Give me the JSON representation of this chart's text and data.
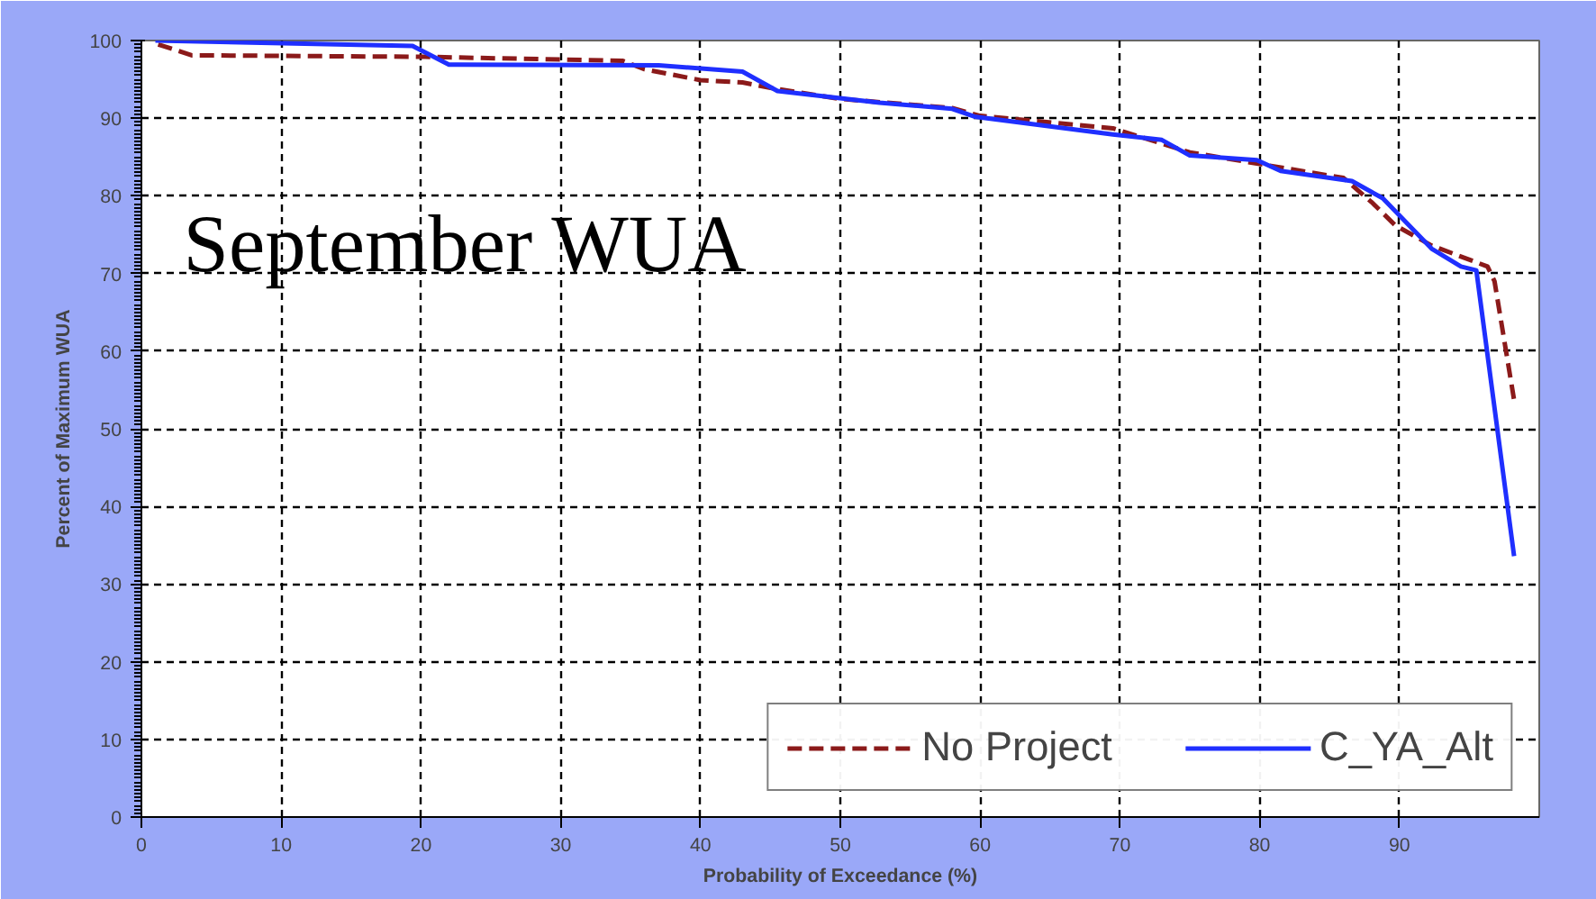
{
  "chart_data": {
    "type": "line",
    "title": "September WUA",
    "xlabel": "Probability of Exceedance (%)",
    "ylabel": "Percent of Maximum WUA",
    "xlim": [
      0,
      100
    ],
    "xticks": [
      0,
      10,
      20,
      30,
      40,
      50,
      60,
      70,
      80,
      90
    ],
    "ylim": [
      0,
      100
    ],
    "yticks": [
      0,
      10,
      20,
      30,
      40,
      50,
      60,
      70,
      80,
      90,
      100
    ],
    "grid": true,
    "legend": "bottom right",
    "series": [
      {
        "name": "No Project",
        "color": "#8b1a1a",
        "line_style": "dashed",
        "x": [
          1.2,
          3.6,
          20.3,
          34.4,
          36,
          40,
          43,
          45,
          49.9,
          58,
          60,
          69.5,
          75,
          86,
          88,
          89.7,
          92.3,
          96.3,
          96.8,
          98.2
        ],
        "values": [
          99.5,
          98.1,
          97.9,
          97.4,
          96.3,
          94.9,
          94.6,
          93.9,
          92.5,
          91.3,
          90.3,
          88.7,
          85.6,
          82.3,
          79.2,
          76.2,
          73.6,
          70.9,
          69,
          53.7
        ]
      },
      {
        "name": "C_YA_Alt",
        "color": "#1f2fff",
        "line_style": "solid",
        "x": [
          1,
          19.4,
          22,
          37,
          43,
          45.5,
          52.8,
          58,
          59.6,
          69.5,
          73,
          75,
          79.8,
          81.5,
          86.6,
          88.8,
          92.3,
          94.4,
          95.5,
          98.2
        ],
        "values": [
          100,
          99.3,
          96.9,
          96.8,
          96,
          93.5,
          92,
          91.2,
          90.2,
          87.9,
          87.2,
          85.2,
          84.6,
          83.2,
          81.9,
          79.7,
          73.2,
          70.9,
          70.4,
          33.6
        ]
      }
    ]
  }
}
